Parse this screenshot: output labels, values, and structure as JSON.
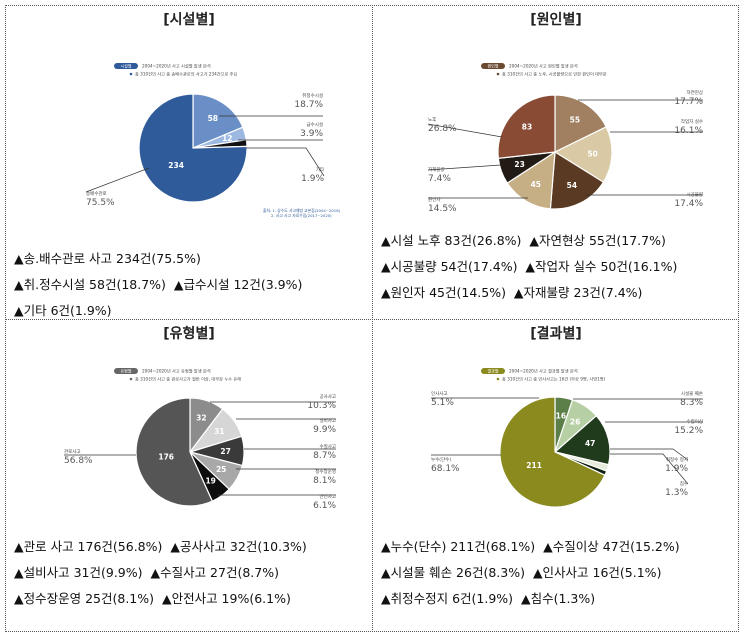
{
  "panels": [
    {
      "title": "[시설별]",
      "header_badge": "시설별",
      "header_line1": "2004~2020년 사고 시설별 발생 분석",
      "header_line2": "총 310건의 사고 중 송배수관로의 사고가 234건으로 주요",
      "footnote_line1": "출처: 1. 상수도 사고예방 교본집(2004~2016)",
      "footnote_line2": "2. 사고 사고 자료수집(2017~2020)",
      "description": [
        "▲송.배수관로 사고 234건(75.5%)",
        "▲취.정수시설 58건(18.7%)",
        "▲급수시설 12건(3.9%)",
        "▲기타 6건(1.9%)"
      ]
    },
    {
      "title": "[원인별]",
      "header_badge": "원인별",
      "header_line1": "2004~2020년 사고 원인별 발생 분석",
      "header_line2": "총 310건의 사고 중 노후, 시공불량으로 인한 원인이 대부분",
      "description": [
        "▲시설 노후 83건(26.8%)",
        "▲자연현상 55건(17.7%)",
        "▲시공불량 54건(17.4%)",
        "▲작업자 실수 50건(16.1%)",
        "▲원인자 45건(14.5%)",
        "▲자재불량 23건(7.4%)"
      ]
    },
    {
      "title": "[유형별]",
      "header_badge": "유형별",
      "header_line1": "2004~2020년 사고 유형별 발생 분석",
      "header_line2": "총 310건의 사고 중 관로사고가 절반 이상, 대부분 누수 유래",
      "description": [
        "▲관로 사고 176건(56.8%)",
        "▲공사사고 32건(10.3%)",
        "▲설비사고 31건(9.9%)",
        "▲수질사고 27건(8.7%)",
        "▲정수장운영 25건(8.1%)",
        "▲안전사고 19%(6.1%)"
      ]
    },
    {
      "title": "[결과별]",
      "header_badge": "결과별",
      "header_line1": "2004~2020년 사고 결과별 발생 분석",
      "header_line2": "총 310건의 사고 중 인사사고는 16건 (부상 9명, 사망1명)",
      "description": [
        "▲누수(단수) 211건(68.1%)",
        "▲수질이상 47건(15.2%)",
        "▲시설물 훼손 26건(8.3%)",
        "▲인사사고 16건(5.1%)",
        "▲취정수정지 6건(1.9%)",
        "▲침수(1.3%)"
      ]
    }
  ],
  "chart_data": [
    {
      "type": "pie",
      "title": "[시설별]",
      "total": 310,
      "slices": [
        {
          "name": "송배수관로",
          "value": 234,
          "percent": "75.5%",
          "color": "#2f5b9a"
        },
        {
          "name": "취정수시설",
          "value": 58,
          "percent": "18.7%",
          "color": "#6a8fc6"
        },
        {
          "name": "급수시설",
          "value": 12,
          "percent": "3.9%",
          "color": "#9db9e2"
        },
        {
          "name": "기타",
          "value": 6,
          "percent": "1.9%",
          "color": "#111111"
        }
      ]
    },
    {
      "type": "pie",
      "title": "[원인별]",
      "total": 310,
      "slices": [
        {
          "name": "노후",
          "value": 83,
          "percent": "26.8%",
          "color": "#8a4b35"
        },
        {
          "name": "자연현상",
          "value": 55,
          "percent": "17.7%",
          "color": "#a08060"
        },
        {
          "name": "작업자 실수",
          "value": 50,
          "percent": "16.1%",
          "color": "#d9c9a5"
        },
        {
          "name": "시공불량",
          "value": 54,
          "percent": "17.4%",
          "color": "#5a3a22"
        },
        {
          "name": "원인자",
          "value": 45,
          "percent": "14.5%",
          "color": "#c6ae85"
        },
        {
          "name": "자재불량",
          "value": 23,
          "percent": "7.4%",
          "color": "#221a14"
        }
      ]
    },
    {
      "type": "pie",
      "title": "[유형별]",
      "total": 310,
      "slices": [
        {
          "name": "관로사고",
          "value": 176,
          "percent": "56.8%",
          "color": "#555555"
        },
        {
          "name": "공사사고",
          "value": 32,
          "percent": "10.3%",
          "color": "#8c8c8c"
        },
        {
          "name": "설비사고",
          "value": 31,
          "percent": "9.9%",
          "color": "#d6d6d6"
        },
        {
          "name": "수질사고",
          "value": 27,
          "percent": "8.7%",
          "color": "#3a3a3a"
        },
        {
          "name": "정수장운영",
          "value": 25,
          "percent": "8.1%",
          "color": "#a8a8a8"
        },
        {
          "name": "안전사고",
          "value": 19,
          "percent": "6.1%",
          "color": "#0d0d0d"
        }
      ]
    },
    {
      "type": "pie",
      "title": "[결과별]",
      "total": 310,
      "slices": [
        {
          "name": "누수(단수)",
          "value": 211,
          "percent": "68.1%",
          "color": "#8a8a1e"
        },
        {
          "name": "인사사고",
          "value": 16,
          "percent": "5.1%",
          "color": "#5c7f4a"
        },
        {
          "name": "시설물 훼손",
          "value": 26,
          "percent": "8.3%",
          "color": "#b7cfa4"
        },
        {
          "name": "수질이상",
          "value": 47,
          "percent": "15.2%",
          "color": "#203a1c"
        },
        {
          "name": "취정수 정지",
          "value": 6,
          "percent": "1.9%",
          "color": "#e6ecdc"
        },
        {
          "name": "침수",
          "value": 4,
          "percent": "1.3%",
          "color": "#0f1f0f"
        }
      ]
    }
  ]
}
